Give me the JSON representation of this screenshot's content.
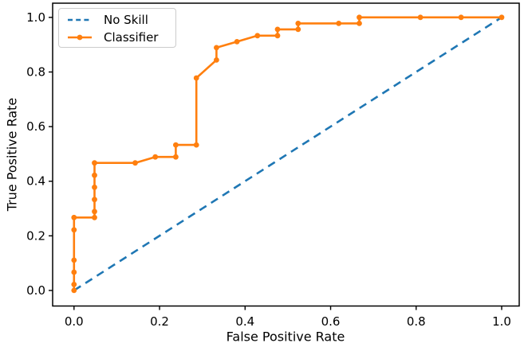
{
  "figure": {
    "xlabel": "False Positive Rate",
    "ylabel": "True Positive Rate"
  },
  "legend": {
    "position": "upper left",
    "items": [
      {
        "label": "No Skill",
        "color": "#1f77b4",
        "style": "dashed"
      },
      {
        "label": "Classifier",
        "color": "#ff7f0e",
        "style": "solid-circle-marker"
      }
    ]
  },
  "colors": {
    "no_skill": "#1f77b4",
    "classifier": "#ff7f0e",
    "spine": "#000000",
    "text": "#000000",
    "legend_border": "#cccccc",
    "background": "#ffffff"
  },
  "chart_data": {
    "type": "line",
    "title": "",
    "xlabel": "False Positive Rate",
    "ylabel": "True Positive Rate",
    "grid": false,
    "legend_position": "upper left",
    "xlim": [
      -0.05,
      1.041
    ],
    "ylim": [
      -0.057,
      1.052
    ],
    "x_ticks": [
      0.0,
      0.2,
      0.4,
      0.6,
      0.8,
      1.0
    ],
    "x_tick_labels": [
      "0.0",
      "0.2",
      "0.4",
      "0.6",
      "0.8",
      "1.0"
    ],
    "y_ticks": [
      0.0,
      0.2,
      0.4,
      0.6,
      0.8,
      1.0
    ],
    "y_tick_labels": [
      "0.0",
      "0.2",
      "0.4",
      "0.6",
      "0.8",
      "1.0"
    ],
    "series": [
      {
        "name": "No Skill",
        "color": "#1f77b4",
        "line_style": "dashed",
        "marker": "none",
        "points": [
          [
            0.0,
            0.0
          ],
          [
            1.0,
            1.0
          ]
        ]
      },
      {
        "name": "Classifier",
        "color": "#ff7f0e",
        "line_style": "solid",
        "marker": "circle",
        "points": [
          [
            0.0,
            0.0
          ],
          [
            0.0,
            0.022
          ],
          [
            0.0,
            0.067
          ],
          [
            0.0,
            0.111
          ],
          [
            0.0,
            0.222
          ],
          [
            0.0,
            0.267
          ],
          [
            0.048,
            0.267
          ],
          [
            0.048,
            0.289
          ],
          [
            0.048,
            0.333
          ],
          [
            0.048,
            0.378
          ],
          [
            0.048,
            0.422
          ],
          [
            0.048,
            0.467
          ],
          [
            0.143,
            0.467
          ],
          [
            0.19,
            0.489
          ],
          [
            0.238,
            0.489
          ],
          [
            0.238,
            0.533
          ],
          [
            0.286,
            0.533
          ],
          [
            0.286,
            0.778
          ],
          [
            0.333,
            0.844
          ],
          [
            0.333,
            0.889
          ],
          [
            0.381,
            0.911
          ],
          [
            0.429,
            0.933
          ],
          [
            0.476,
            0.933
          ],
          [
            0.476,
            0.956
          ],
          [
            0.524,
            0.956
          ],
          [
            0.524,
            0.978
          ],
          [
            0.619,
            0.978
          ],
          [
            0.667,
            0.978
          ],
          [
            0.667,
            1.0
          ],
          [
            0.81,
            1.0
          ],
          [
            0.905,
            1.0
          ],
          [
            1.0,
            1.0
          ]
        ]
      }
    ]
  }
}
